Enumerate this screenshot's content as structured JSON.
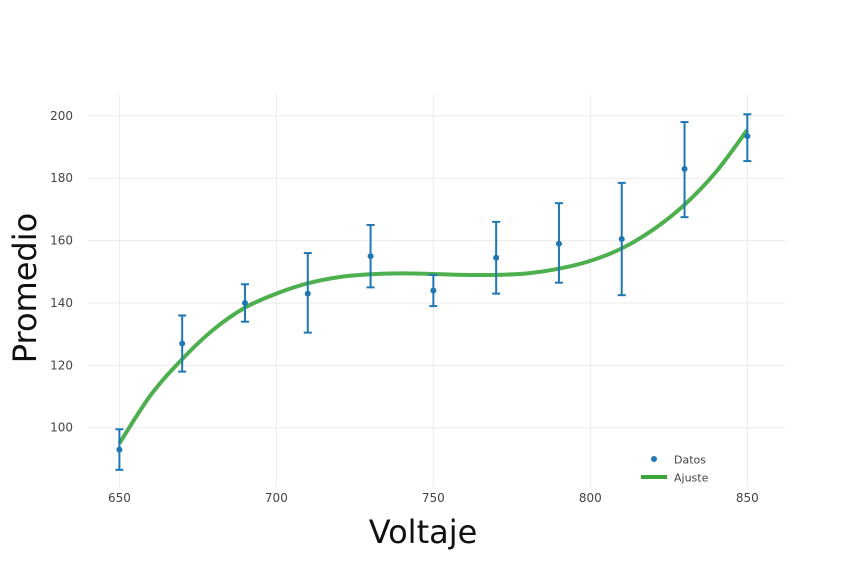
{
  "chart_data": {
    "type": "scatter",
    "title": "",
    "xlabel": "Voltaje",
    "ylabel": "Promedio",
    "xlim": [
      640,
      862
    ],
    "ylim": [
      81,
      207
    ],
    "xticks": [
      650,
      700,
      750,
      800,
      850
    ],
    "yticks": [
      100,
      120,
      140,
      160,
      180,
      200
    ],
    "grid": true,
    "legend_position": "bottom-right",
    "series": [
      {
        "name": "Datos",
        "kind": "points-with-error-bars",
        "color": "#1f77b4",
        "x": [
          650,
          670,
          690,
          710,
          730,
          750,
          770,
          790,
          810,
          830,
          850
        ],
        "y": [
          93,
          127,
          140,
          143,
          155,
          144,
          154.5,
          159,
          160.5,
          183,
          193.5
        ],
        "err_low": [
          86.5,
          118,
          134,
          130.5,
          145,
          139,
          143,
          146.5,
          142.5,
          167.5,
          185.5
        ],
        "err_high": [
          99.5,
          136,
          146,
          156,
          165,
          149,
          166,
          172,
          178.5,
          198,
          200.5
        ]
      },
      {
        "name": "Ajuste",
        "kind": "line",
        "color": "#3aa63a",
        "x": [
          650,
          660,
          670,
          680,
          690,
          700,
          710,
          720,
          730,
          740,
          750,
          760,
          770,
          780,
          790,
          800,
          810,
          820,
          830,
          840,
          850
        ],
        "y": [
          95,
          110.5,
          122,
          131.5,
          138.5,
          143,
          146.3,
          148.3,
          149.2,
          149.5,
          149.3,
          149,
          149,
          149.5,
          151,
          153.5,
          157.5,
          163.5,
          171.5,
          182,
          195.5
        ]
      }
    ]
  }
}
